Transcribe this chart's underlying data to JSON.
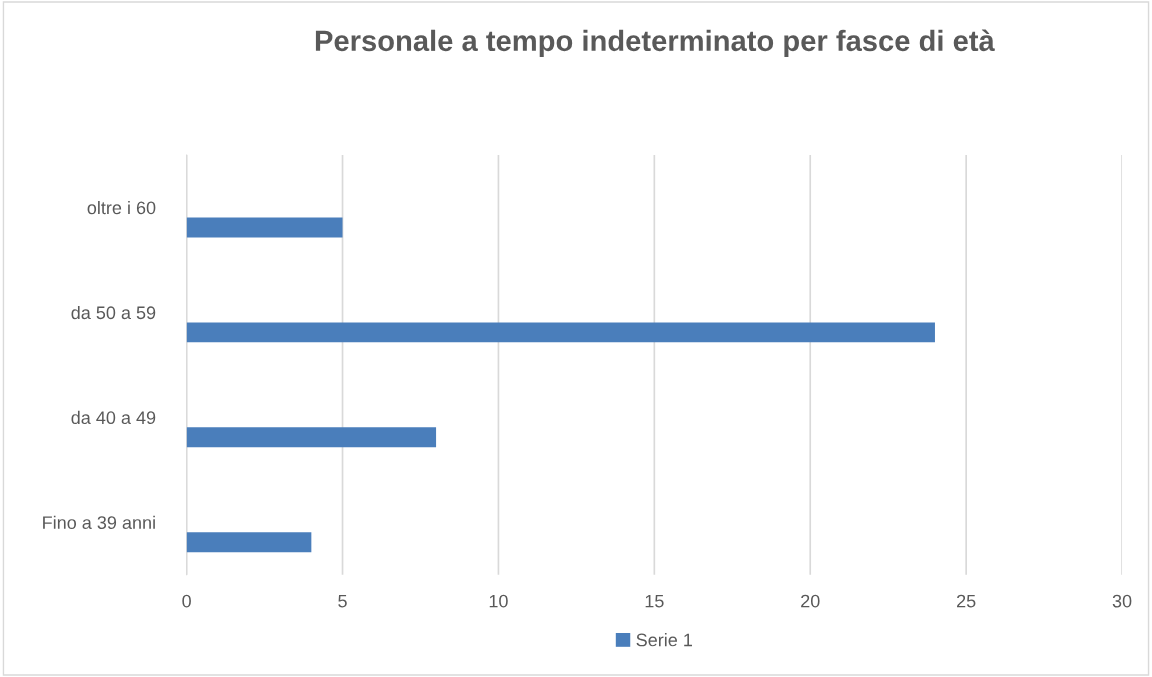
{
  "chart_data": {
    "type": "bar",
    "orientation": "horizontal",
    "title": "Personale a tempo indeterminato per fasce di età",
    "categories": [
      "oltre i 60",
      "da 50 a 59",
      "da 40 a 49",
      "Fino a 39 anni"
    ],
    "series": [
      {
        "name": "Serie 1",
        "color": "#4a7ebb",
        "values": [
          5,
          24,
          8,
          4
        ]
      }
    ],
    "xlim": [
      0,
      30
    ],
    "xticks": [
      0,
      5,
      10,
      15,
      20,
      25,
      30
    ],
    "grid": "x",
    "legend": "bottom"
  }
}
